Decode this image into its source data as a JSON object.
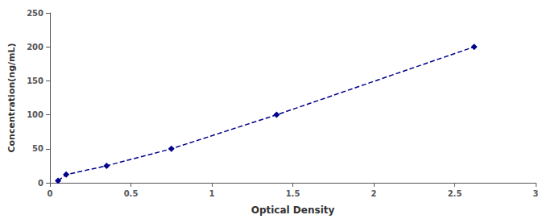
{
  "chart_data": {
    "type": "line",
    "x": [
      0.05,
      0.1,
      0.35,
      0.75,
      1.4,
      2.62
    ],
    "values": [
      3,
      12,
      25,
      50,
      100,
      200
    ],
    "color": "#00008B",
    "marker": "diamond",
    "line_style": "dashed",
    "xlabel": "Optical Density",
    "ylabel": "Concentration(ng/mL)",
    "xlim": [
      0,
      3
    ],
    "ylim": [
      0,
      250
    ],
    "xticks": [
      0,
      0.5,
      1,
      1.5,
      2,
      2.5,
      3
    ],
    "yticks": [
      0,
      50,
      100,
      150,
      200,
      250
    ],
    "grid": false
  }
}
